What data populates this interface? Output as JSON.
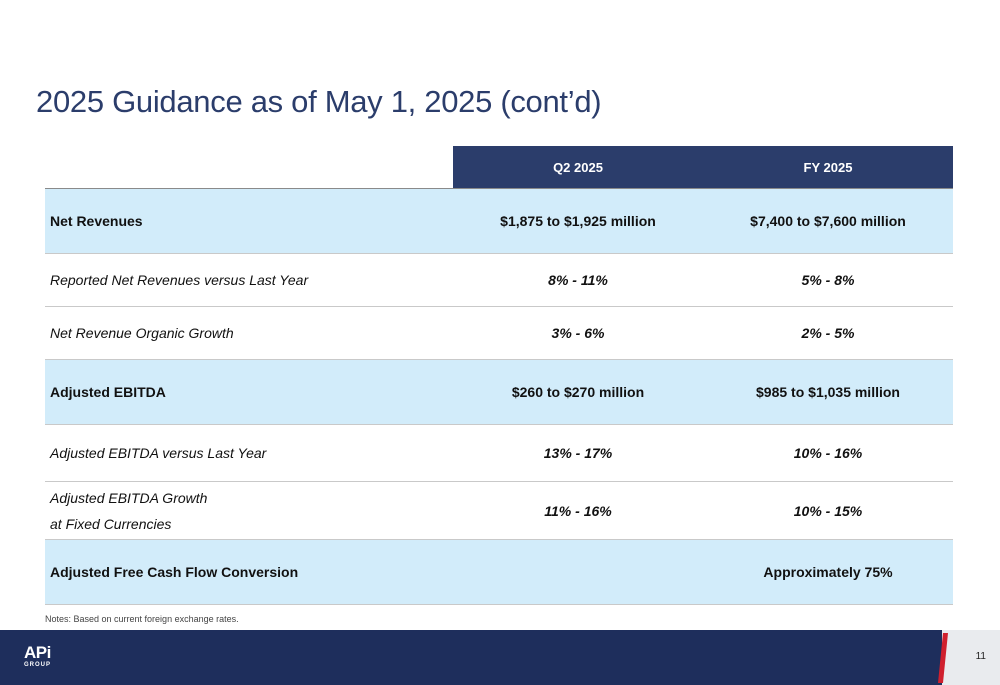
{
  "title": "2025 Guidance as of May 1, 2025 (cont’d)",
  "table": {
    "headers": [
      "",
      "Q2 2025",
      "FY 2025"
    ],
    "rows": [
      {
        "label": "Net Revenues",
        "q2": "$1,875 to $1,925 million",
        "fy": "$7,400 to $7,600 million"
      },
      {
        "label": "Reported Net Revenues versus Last Year",
        "q2": "8% - 11%",
        "fy": "5% - 8%"
      },
      {
        "label": "Net Revenue Organic Growth",
        "q2": "3% - 6%",
        "fy": "2% - 5%"
      },
      {
        "label": "Adjusted EBITDA",
        "q2": "$260 to $270 million",
        "fy": "$985 to $1,035 million"
      },
      {
        "label": "Adjusted EBITDA versus Last Year",
        "q2": "13% - 17%",
        "fy": "10% - 16%"
      },
      {
        "label_line1": "Adjusted EBITDA Growth",
        "label_line2": "at Fixed Currencies",
        "q2": "11% - 16%",
        "fy": "10% - 15%"
      },
      {
        "label": "Adjusted Free Cash Flow Conversion",
        "q2": "",
        "fy": "Approximately 75%"
      }
    ]
  },
  "notes": "Notes: Based on current foreign exchange rates.",
  "footer": {
    "logo_main": "APi",
    "logo_sub": "GROUP",
    "page_number": "11"
  },
  "colors": {
    "navy": "#2b3d6b",
    "footer_navy": "#1e2e5c",
    "highlight_row": "#d2ecfa",
    "accent_red": "#d0202e"
  }
}
